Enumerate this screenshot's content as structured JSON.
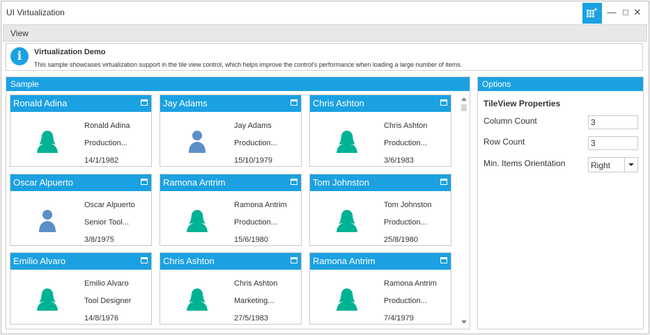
{
  "window": {
    "title": "UI Virtualization"
  },
  "menu": {
    "view_label": "View"
  },
  "info": {
    "title": "Virtualization Demo",
    "description": "This sample showcases virtualization support in the tile view control, which helps improve the control's performance when loading a large number of items."
  },
  "sample": {
    "header": "Sample",
    "tiles": [
      {
        "header": "Ronald Adina",
        "name": "Ronald Adina",
        "title": "Production...",
        "date": "14/1/1982",
        "avatar": "female-person-icon",
        "avatar_color": "#00b294"
      },
      {
        "header": "Jay Adams",
        "name": "Jay Adams",
        "title": "Production...",
        "date": "15/10/1979",
        "avatar": "male-person-icon",
        "avatar_color": "#5b8fc7"
      },
      {
        "header": "Chris Ashton",
        "name": "Chris Ashton",
        "title": "Production...",
        "date": "3/6/1983",
        "avatar": "female-person-icon",
        "avatar_color": "#00b294"
      },
      {
        "header": "Oscar Alpuerto",
        "name": "Oscar Alpuerto",
        "title": "Senior Tool...",
        "date": "3/8/1975",
        "avatar": "male-person-icon",
        "avatar_color": "#5b8fc7"
      },
      {
        "header": "Ramona Antrim",
        "name": "Ramona Antrim",
        "title": "Production...",
        "date": "15/6/1980",
        "avatar": "female-person-icon",
        "avatar_color": "#00b294"
      },
      {
        "header": "Tom Johnston",
        "name": "Tom Johnston",
        "title": "Production...",
        "date": "25/8/1980",
        "avatar": "female-person-icon",
        "avatar_color": "#00b294"
      },
      {
        "header": "Emilio Alvaro",
        "name": "Emilio Alvaro",
        "title": "Tool Designer",
        "date": "14/8/1976",
        "avatar": "female-person-icon",
        "avatar_color": "#00b294"
      },
      {
        "header": "Chris Ashton",
        "name": "Chris Ashton",
        "title": "Marketing...",
        "date": "27/5/1983",
        "avatar": "female-person-icon",
        "avatar_color": "#00b294"
      },
      {
        "header": "Ramona Antrim",
        "name": "Ramona Antrim",
        "title": "Production...",
        "date": "7/4/1979",
        "avatar": "female-person-icon",
        "avatar_color": "#00b294"
      }
    ]
  },
  "options": {
    "header": "Options",
    "heading": "TileView Properties",
    "column_count_label": "Column Count",
    "column_count_value": "3",
    "row_count_label": "Row Count",
    "row_count_value": "3",
    "orientation_label": "Min. Items Orientation",
    "orientation_value": "Right"
  },
  "colors": {
    "accent": "#1ba1e2",
    "female_avatar": "#00b294",
    "male_avatar": "#5b8fc7"
  }
}
